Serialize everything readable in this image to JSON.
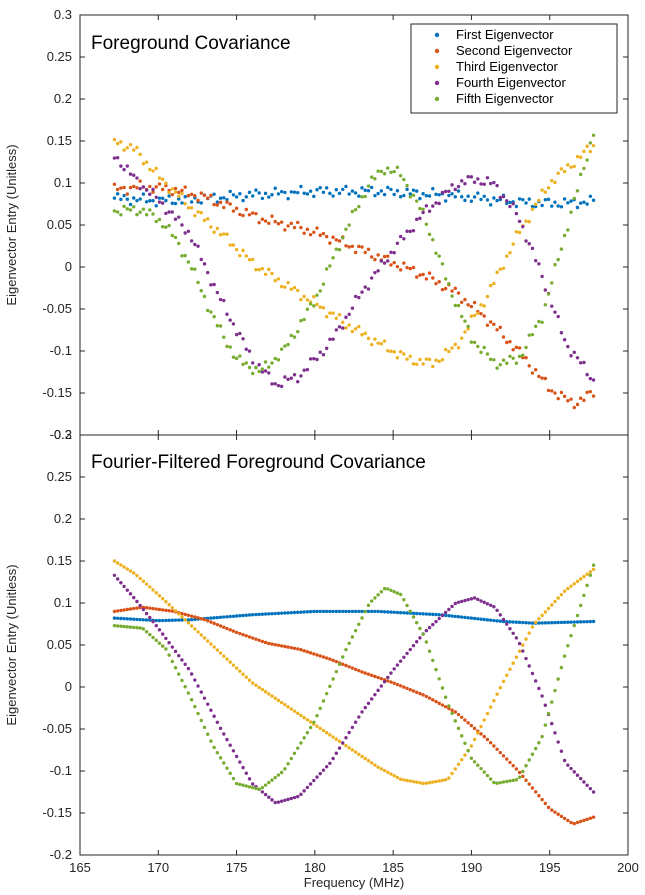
{
  "colors": [
    "#0072BD",
    "#D95319",
    "#EDB120",
    "#7E2F8E",
    "#77AC30"
  ],
  "xlabel": "Frequency (MHz)",
  "xticks": [
    "165",
    "170",
    "175",
    "180",
    "185",
    "190",
    "195",
    "200"
  ],
  "yticks": [
    "0.3",
    "0.25",
    "0.2",
    "0.15",
    "0.1",
    "0.05",
    "0",
    "-0.05",
    "-0.1",
    "-0.15",
    "-0.2"
  ],
  "legend": [
    "First Eigenvector",
    "Second Eigenvector",
    "Third Eigenvector",
    "Fourth Eigenvector",
    "Fifth Eigenvector"
  ],
  "chart_data": [
    {
      "type": "scatter",
      "title": "Foreground Covariance",
      "xlabel": "",
      "ylabel": "Eigenvector Entry (Unitless)",
      "xlim": [
        165,
        200
      ],
      "ylim": [
        -0.2,
        0.3
      ],
      "grid": false,
      "legend_position": "top-right",
      "x_range": [
        167.2,
        197.8
      ],
      "points_per_series": 150,
      "series": [
        {
          "name": "First Eigenvector",
          "x": [
            167.2,
            170,
            172,
            174,
            176,
            178,
            180,
            182,
            184,
            186,
            188,
            190,
            192,
            194,
            196,
            197.8
          ],
          "y": [
            0.082,
            0.079,
            0.08,
            0.083,
            0.086,
            0.088,
            0.09,
            0.09,
            0.09,
            0.088,
            0.086,
            0.083,
            0.079,
            0.076,
            0.076,
            0.078
          ]
        },
        {
          "name": "Second Eigenvector",
          "x": [
            167.2,
            169,
            171,
            173,
            175,
            177,
            179,
            181,
            183,
            185,
            187,
            189,
            191,
            193,
            195,
            196.5,
            197.8
          ],
          "y": [
            0.092,
            0.096,
            0.092,
            0.083,
            0.068,
            0.055,
            0.047,
            0.035,
            0.02,
            0.005,
            -0.01,
            -0.03,
            -0.062,
            -0.1,
            -0.145,
            -0.163,
            -0.15
          ]
        },
        {
          "name": "Third Eigenvector",
          "x": [
            167.2,
            168.5,
            170,
            172,
            174,
            176,
            178,
            180,
            182,
            184,
            186,
            187.5,
            189,
            191,
            193,
            195,
            197.8
          ],
          "y": [
            0.15,
            0.14,
            0.108,
            0.072,
            0.04,
            0.005,
            -0.02,
            -0.043,
            -0.068,
            -0.09,
            -0.11,
            -0.115,
            -0.095,
            -0.035,
            0.04,
            0.1,
            0.145
          ]
        },
        {
          "name": "Fourth Eigenvector",
          "x": [
            167.2,
            168.5,
            170,
            172,
            174,
            176,
            177.5,
            179,
            181,
            183,
            185,
            187,
            189,
            190.2,
            191.5,
            193,
            194.5,
            196,
            197.8
          ],
          "y": [
            0.133,
            0.105,
            0.08,
            0.04,
            -0.04,
            -0.11,
            -0.14,
            -0.13,
            -0.09,
            -0.03,
            0.02,
            0.065,
            0.098,
            0.105,
            0.098,
            0.06,
            -0.01,
            -0.09,
            -0.135
          ]
        },
        {
          "name": "Fifth Eigenvector",
          "x": [
            167.2,
            169,
            170.5,
            172,
            173.5,
            175,
            176.5,
            178,
            180,
            182,
            183.5,
            184.5,
            185.5,
            187,
            188.5,
            190,
            191.5,
            193,
            194.5,
            196,
            197.8
          ],
          "y": [
            0.067,
            0.068,
            0.05,
            0.005,
            -0.06,
            -0.11,
            -0.125,
            -0.1,
            -0.04,
            0.045,
            0.1,
            0.118,
            0.11,
            0.06,
            -0.02,
            -0.085,
            -0.115,
            -0.11,
            -0.06,
            0.04,
            0.16
          ]
        }
      ]
    },
    {
      "type": "scatter",
      "title": "Fourier-Filtered Foreground Covariance",
      "xlabel": "Frequency (MHz)",
      "ylabel": "Eigenvector Entry (Unitless)",
      "xlim": [
        165,
        200
      ],
      "ylim": [
        -0.2,
        0.3
      ],
      "grid": false,
      "x_range": [
        167.2,
        197.8
      ],
      "points_per_series": 150,
      "series": [
        {
          "name": "First Eigenvector",
          "x": [
            167.2,
            170,
            172,
            174,
            176,
            178,
            180,
            182,
            184,
            186,
            188,
            190,
            192,
            194,
            196,
            197.8
          ],
          "y": [
            0.082,
            0.079,
            0.08,
            0.083,
            0.086,
            0.088,
            0.09,
            0.09,
            0.09,
            0.088,
            0.086,
            0.082,
            0.078,
            0.076,
            0.077,
            0.078
          ]
        },
        {
          "name": "Second Eigenvector",
          "x": [
            167.2,
            169,
            171,
            173,
            175,
            177,
            179,
            181,
            183,
            185,
            187,
            189,
            191,
            193,
            195,
            196.5,
            197.8
          ],
          "y": [
            0.09,
            0.095,
            0.09,
            0.08,
            0.065,
            0.052,
            0.045,
            0.033,
            0.018,
            0.005,
            -0.01,
            -0.03,
            -0.062,
            -0.1,
            -0.145,
            -0.163,
            -0.155
          ]
        },
        {
          "name": "Third Eigenvector",
          "x": [
            167.2,
            168.5,
            170,
            172,
            174,
            176,
            178,
            180,
            182,
            184,
            185.5,
            187,
            188.5,
            190,
            192,
            194,
            196,
            197.8
          ],
          "y": [
            0.15,
            0.135,
            0.11,
            0.075,
            0.04,
            0.005,
            -0.02,
            -0.045,
            -0.07,
            -0.095,
            -0.11,
            -0.115,
            -0.11,
            -0.07,
            0.005,
            0.075,
            0.115,
            0.14
          ]
        },
        {
          "name": "Fourth Eigenvector",
          "x": [
            167.2,
            168.5,
            170,
            172,
            174,
            176,
            177.5,
            179,
            181,
            183,
            185,
            187,
            189,
            190.2,
            191.5,
            193,
            194.5,
            196,
            197.8
          ],
          "y": [
            0.133,
            0.105,
            0.07,
            0.02,
            -0.05,
            -0.115,
            -0.138,
            -0.13,
            -0.09,
            -0.03,
            0.02,
            0.065,
            0.1,
            0.106,
            0.095,
            0.055,
            -0.01,
            -0.09,
            -0.125
          ]
        },
        {
          "name": "Fifth Eigenvector",
          "x": [
            167.2,
            169,
            170.5,
            172,
            173.5,
            175,
            176.5,
            178,
            180,
            182,
            183.5,
            184.5,
            185.5,
            187,
            188.5,
            190,
            191.5,
            193,
            194.5,
            196,
            197.8
          ],
          "y": [
            0.073,
            0.07,
            0.045,
            -0.01,
            -0.07,
            -0.115,
            -0.122,
            -0.1,
            -0.04,
            0.045,
            0.1,
            0.118,
            0.11,
            0.06,
            -0.02,
            -0.085,
            -0.115,
            -0.11,
            -0.06,
            0.04,
            0.145
          ]
        }
      ]
    }
  ]
}
